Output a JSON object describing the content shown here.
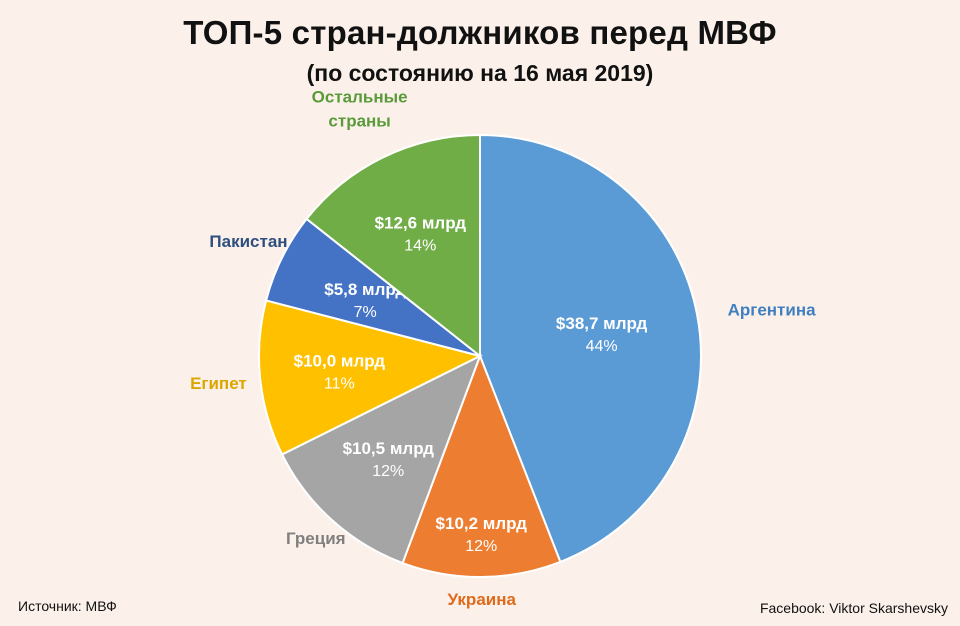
{
  "title": "ТОП-5 стран-должников перед МВФ",
  "subtitle": "(по состоянию на 16 мая 2019)",
  "source": "Источник: МВФ",
  "credit": "Facebook: Viktor Skarshevsky",
  "chart_data": {
    "type": "pie",
    "title": "ТОП-5 стран-должников перед МВФ",
    "subtitle": "(по состоянию на 16 мая 2019)",
    "start": "top, clockwise",
    "slices": [
      {
        "label": "Аргентина",
        "value": 38.7,
        "value_label": "$38,7 млрд",
        "percent": "44%",
        "color": "#5b9bd5",
        "label_color": "#3f7fc0"
      },
      {
        "label": "Украина",
        "value": 10.2,
        "value_label": "$10,2 млрд",
        "percent": "12%",
        "color": "#ed7d31",
        "label_color": "#e06a1c"
      },
      {
        "label": "Греция",
        "value": 10.5,
        "value_label": "$10,5 млрд",
        "percent": "12%",
        "color": "#a5a5a5",
        "label_color": "#7f7f7f"
      },
      {
        "label": "Египет",
        "value": 10.0,
        "value_label": "$10,0 млрд",
        "percent": "11%",
        "color": "#ffc000",
        "label_color": "#dca600"
      },
      {
        "label": "Пакистан",
        "value": 5.8,
        "value_label": "$5,8 млрд",
        "percent": "7%",
        "color": "#4472c4",
        "label_color": "#2f4f7f"
      },
      {
        "label": "Остальные страны",
        "value": 12.6,
        "value_label": "$12,6 млрд",
        "percent": "14%",
        "color": "#70ad47",
        "label_color": "#5a9a3a"
      }
    ]
  }
}
